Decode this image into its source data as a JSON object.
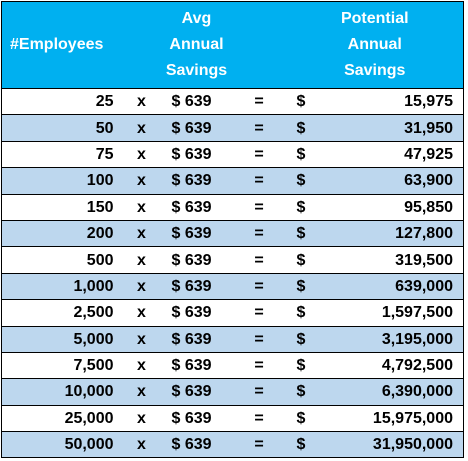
{
  "header": {
    "employees": "#Employees",
    "avg": [
      "Avg",
      "Annual",
      "Savings"
    ],
    "potential": [
      "Potential",
      "Annual",
      "Savings"
    ]
  },
  "rows": [
    [
      "25",
      "x",
      "$ 639",
      "=",
      "$",
      "15,975"
    ],
    [
      "50",
      "x",
      "$ 639",
      "=",
      "$",
      "31,950"
    ],
    [
      "75",
      "x",
      "$ 639",
      "=",
      "$",
      "47,925"
    ],
    [
      "100",
      "x",
      "$ 639",
      "=",
      "$",
      "63,900"
    ],
    [
      "150",
      "x",
      "$ 639",
      "=",
      "$",
      "95,850"
    ],
    [
      "200",
      "x",
      "$ 639",
      "=",
      "$",
      "127,800"
    ],
    [
      "500",
      "x",
      "$ 639",
      "=",
      "$",
      "319,500"
    ],
    [
      "1,000",
      "x",
      "$ 639",
      "=",
      "$",
      "639,000"
    ],
    [
      "2,500",
      "x",
      "$ 639",
      "=",
      "$",
      "1,597,500"
    ],
    [
      "5,000",
      "x",
      "$ 639",
      "=",
      "$",
      "3,195,000"
    ],
    [
      "7,500",
      "x",
      "$ 639",
      "=",
      "$",
      "4,792,500"
    ],
    [
      "10,000",
      "x",
      "$ 639",
      "=",
      "$",
      "6,390,000"
    ],
    [
      "25,000",
      "x",
      "$ 639",
      "=",
      "$",
      "15,975,000"
    ],
    [
      "50,000",
      "x",
      "$ 639",
      "=",
      "$",
      "31,950,000"
    ]
  ]
}
